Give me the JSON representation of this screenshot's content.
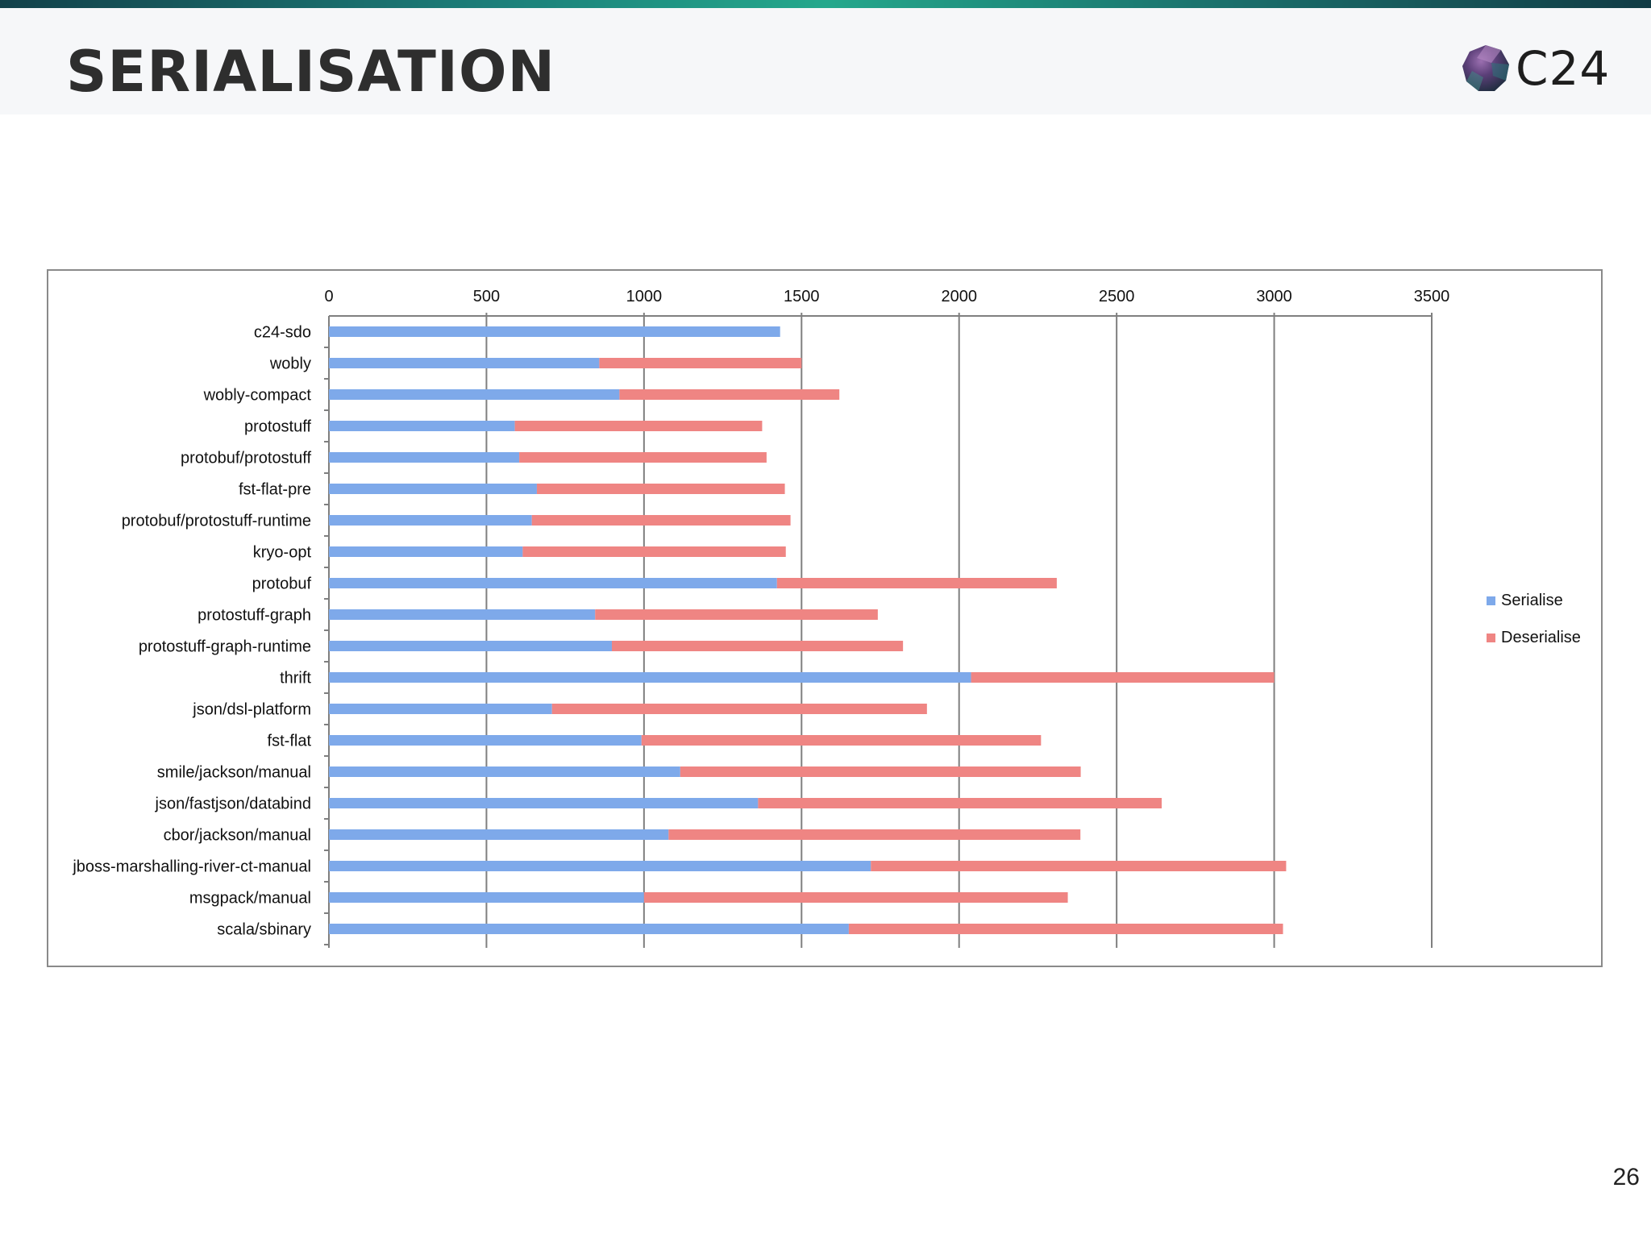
{
  "slide": {
    "title": "SERIALISATION",
    "logo_text": "C24",
    "logo_icon": "gem-icon",
    "page_number": "26"
  },
  "colors": {
    "serialise": "#7ea9ea",
    "deserialise": "#ef8583",
    "grid": "#7f7f7f"
  },
  "chart_data": {
    "type": "bar",
    "orientation": "horizontal",
    "stacked": true,
    "title": "",
    "xlabel": "",
    "ylabel": "",
    "xlim": [
      0,
      3500
    ],
    "x_ticks": [
      0,
      500,
      1000,
      1500,
      2000,
      2500,
      3000,
      3500
    ],
    "x_axis_position": "top",
    "grid": true,
    "legend_position": "right",
    "categories": [
      "c24-sdo",
      "wobly",
      "wobly-compact",
      "protostuff",
      "protobuf/protostuff",
      "fst-flat-pre",
      "protobuf/protostuff-runtime",
      "kryo-opt",
      "protobuf",
      "protostuff-graph",
      "protostuff-graph-runtime",
      "thrift",
      "json/dsl-platform",
      "fst-flat",
      "smile/jackson/manual",
      "json/fastjson/databind",
      "cbor/jackson/manual",
      "jboss-marshalling-river-ct-manual",
      "msgpack/manual",
      "scala/sbinary"
    ],
    "series": [
      {
        "name": "Serialise",
        "values": [
          1432,
          858,
          922,
          590,
          604,
          660,
          644,
          615,
          1422,
          845,
          898,
          2038,
          708,
          992,
          1115,
          1362,
          1078,
          1720,
          1000,
          1650
        ]
      },
      {
        "name": "Deserialise",
        "values": [
          0,
          642,
          698,
          785,
          785,
          787,
          821,
          835,
          888,
          897,
          924,
          962,
          1190,
          1268,
          1271,
          1281,
          1307,
          1318,
          1345,
          1378
        ]
      }
    ]
  }
}
